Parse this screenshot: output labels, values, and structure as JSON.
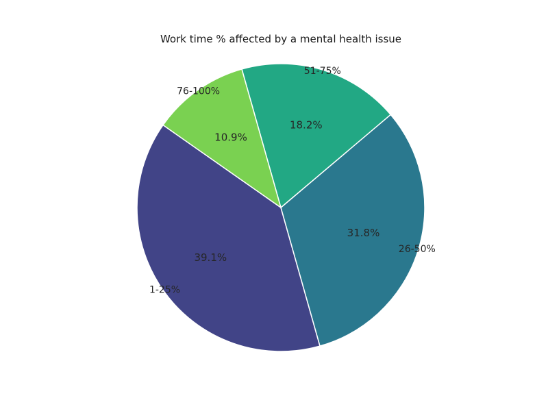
{
  "chart_data": {
    "type": "pie",
    "title": "Work time % affected by a mental health issue",
    "categories": [
      "1-25%",
      "26-50%",
      "51-75%",
      "76-100%"
    ],
    "values": [
      39.1,
      31.8,
      18.2,
      10.9
    ],
    "value_labels": [
      "39.1%",
      "31.8%",
      "18.2%",
      "10.9%"
    ],
    "colors": [
      "#414487",
      "#2a788e",
      "#22a884",
      "#7ad151"
    ],
    "start_angle_deg": 145,
    "direction": "counterclockwise",
    "edge_color": "#ffffff"
  }
}
